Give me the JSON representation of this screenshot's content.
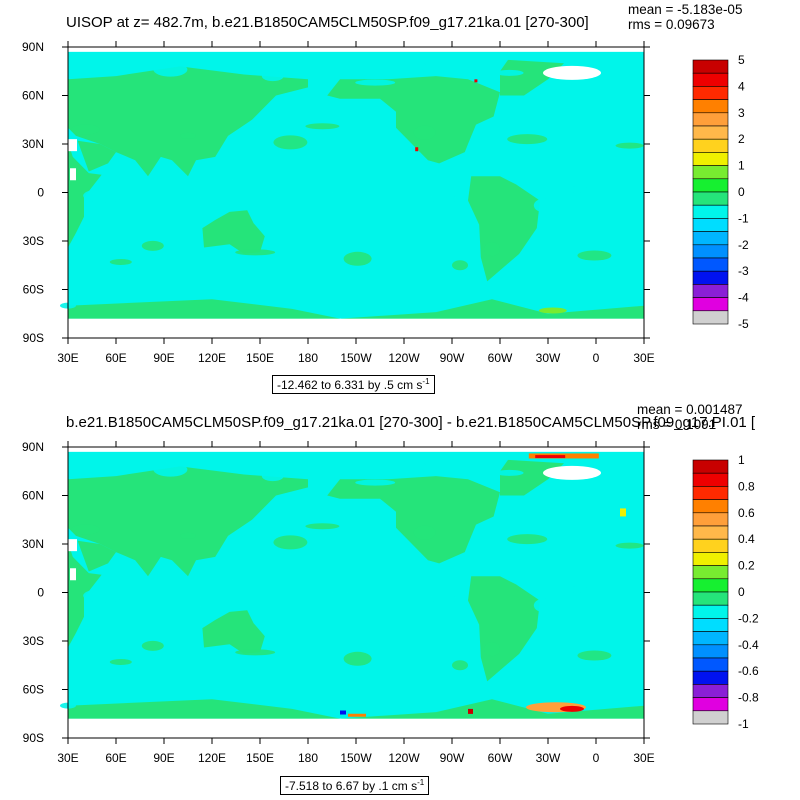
{
  "palette": [
    "#6f6f6f",
    "#d0d0d0",
    "#e000e0",
    "#8a1fd6",
    "#0012f0",
    "#0058ff",
    "#0090ff",
    "#00b6ff",
    "#00ddff",
    "#00f5ea",
    "#25e47a",
    "#16f030",
    "#78ec30",
    "#f0f000",
    "#ffd21e",
    "#ffb84a",
    "#ff9f3a",
    "#ff8000",
    "#ff2a00",
    "#ee0000",
    "#c80000"
  ],
  "map": {
    "ocean_color": "#00f5ea",
    "land_color": "#25e47a",
    "missing_color": "#ffffff"
  },
  "chart_data": [
    {
      "type": "heatmap",
      "title": "UISOP at z= 482.7m, b.e21.B1850CAM5CLM50SP.f09_g17.21ka.01 [270-300]",
      "stats": {
        "mean": "mean = -5.183e-05",
        "rms": "rms = 0.09673"
      },
      "x_ticks": [
        "30E",
        "60E",
        "90E",
        "120E",
        "150E",
        "180",
        "150W",
        "120W",
        "90W",
        "60W",
        "30W",
        "0",
        "30E"
      ],
      "y_ticks": [
        "90N",
        "60N",
        "30N",
        "0",
        "30S",
        "60S",
        "90S"
      ],
      "xlim": [
        30,
        390
      ],
      "ylim": [
        -90,
        90
      ],
      "colorbar": {
        "levels": [
          "5",
          "4",
          "3",
          "2",
          "1",
          "0",
          "-1",
          "-2",
          "-3",
          "-4",
          "-5"
        ],
        "min": -5,
        "max": 5
      },
      "range_label": "-12.462 to 6.331 by .5 cm s",
      "units_exponent": "-1"
    },
    {
      "type": "heatmap",
      "title": "b.e21.B1850CAM5CLM50SP.f09_g17.21ka.01 [270-300] - b.e21.B1850CAM5CLM50SP.f09_g17.PI.01 [",
      "stats": {
        "mean": "mean = 0.001487",
        "rms": "rms = 0.1091"
      },
      "x_ticks": [
        "30E",
        "60E",
        "90E",
        "120E",
        "150E",
        "180",
        "150W",
        "120W",
        "90W",
        "60W",
        "30W",
        "0",
        "30E"
      ],
      "y_ticks": [
        "90N",
        "60N",
        "30N",
        "0",
        "30S",
        "60S",
        "90S"
      ],
      "xlim": [
        30,
        390
      ],
      "ylim": [
        -90,
        90
      ],
      "colorbar": {
        "levels": [
          "1",
          "0.8",
          "0.6",
          "0.4",
          "0.2",
          "0",
          "-0.2",
          "-0.4",
          "-0.6",
          "-0.8",
          "-1"
        ],
        "min": -1,
        "max": 1
      },
      "range_label": "-7.518 to 6.67 by .1 cm s",
      "units_exponent": "-1"
    }
  ]
}
